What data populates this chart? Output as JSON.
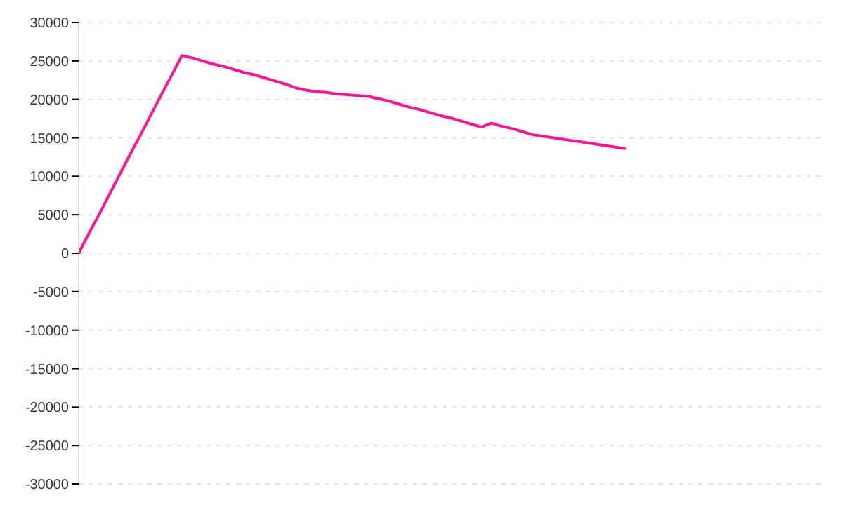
{
  "chart_data": {
    "type": "line",
    "categories": [
      null,
      null,
      null,
      null,
      null,
      null,
      null,
      null,
      null,
      null,
      null,
      null,
      null,
      null,
      null,
      null,
      null,
      null,
      null,
      null,
      null,
      null,
      null,
      null,
      null,
      null,
      null,
      null,
      null,
      null,
      null,
      null,
      null,
      null,
      null,
      null,
      null,
      null,
      null,
      null,
      null,
      null,
      null,
      null,
      null,
      null,
      null,
      null,
      null,
      null,
      null,
      null,
      null,
      null,
      null,
      null,
      null,
      null,
      null,
      null,
      null,
      null,
      null,
      null,
      null,
      null,
      null,
      null,
      null,
      null,
      null,
      null,
      null
    ],
    "series": [
      {
        "color": "#ff1493",
        "values": [
          0,
          2600,
          5100,
          7700,
          10300,
          12900,
          15400,
          18000,
          20600,
          23100,
          25700,
          25400,
          25000,
          24600,
          24300,
          23900,
          23500,
          23200,
          22800,
          22400,
          22000,
          21500,
          21200,
          21000,
          20900,
          20700,
          20600,
          20500,
          20400,
          20100,
          19800,
          19400,
          19000,
          18700,
          18300,
          17900,
          17600,
          17200,
          16800,
          16400,
          16900,
          16500,
          16200,
          15800,
          15400,
          15200,
          15000,
          14800,
          14600,
          14400,
          14200,
          14000,
          13800,
          13600,
          null,
          null,
          null,
          null,
          null,
          null,
          null,
          null,
          null,
          null,
          null,
          null,
          null,
          null,
          null,
          null,
          null,
          null,
          null
        ]
      }
    ],
    "ylim": [
      -30000,
      30000
    ],
    "yticks": [
      -30000,
      -25000,
      -20000,
      -15000,
      -10000,
      -5000,
      0,
      5000,
      10000,
      15000,
      20000,
      25000,
      30000
    ],
    "tick_labels": "y",
    "grid": "y",
    "marker": "none",
    "line_style": "solid"
  }
}
